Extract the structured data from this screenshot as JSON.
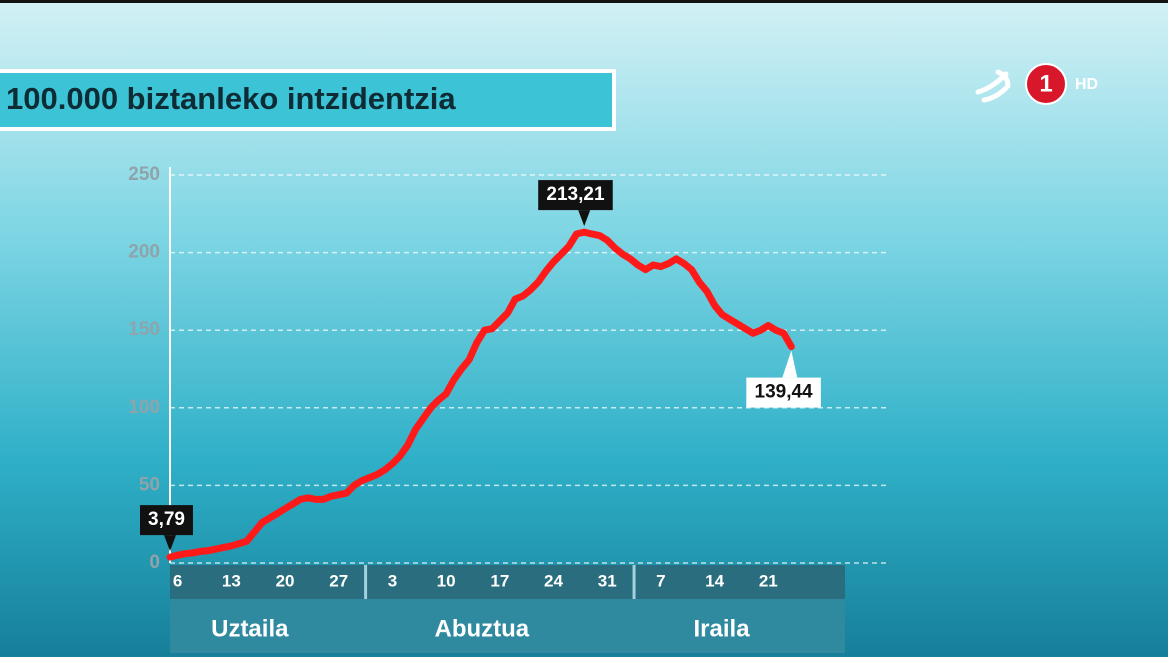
{
  "logo": {
    "number": "1",
    "label": "HD"
  },
  "chart_data": {
    "type": "line",
    "title": "100.000 biztanleko intzidentzia",
    "categories": [
      null,
      "6",
      null,
      null,
      null,
      null,
      null,
      null,
      "13",
      null,
      null,
      null,
      null,
      null,
      null,
      "20",
      null,
      null,
      null,
      null,
      null,
      null,
      "27",
      null,
      null,
      null,
      null,
      null,
      null,
      "3",
      null,
      null,
      null,
      null,
      null,
      null,
      "10",
      null,
      null,
      null,
      null,
      null,
      null,
      "17",
      null,
      null,
      null,
      null,
      null,
      null,
      "24",
      null,
      null,
      null,
      null,
      null,
      null,
      "31",
      null,
      null,
      null,
      null,
      null,
      null,
      "7",
      null,
      null,
      null,
      null,
      null,
      null,
      "14",
      null,
      null,
      null,
      null,
      null,
      null,
      "21",
      null,
      null,
      null,
      null,
      null,
      null,
      null,
      null,
      null
    ],
    "months": [
      "Uztaila",
      "Abuztua",
      "Iraila"
    ],
    "series": [
      {
        "name": "Intzidentzia",
        "color": "#ff1a1a",
        "values": [
          3.79,
          5,
          6,
          6.5,
          7.5,
          8,
          9,
          10,
          11,
          12.5,
          14,
          20,
          26,
          29,
          32,
          35,
          38,
          41,
          42,
          41,
          41,
          43,
          44,
          45,
          50,
          53,
          55,
          57,
          60,
          64,
          69,
          76,
          86,
          93,
          100,
          105,
          109,
          118,
          125,
          131,
          142,
          150,
          151,
          156,
          161,
          170,
          172,
          176,
          181,
          188,
          194,
          199,
          204,
          212,
          213.21,
          212,
          211,
          208,
          203,
          199,
          196,
          192,
          189,
          192,
          191,
          193,
          196,
          193,
          189,
          181,
          175,
          166,
          160,
          157,
          154,
          151,
          148,
          150,
          153,
          150,
          148,
          139.44,
          null,
          null,
          null,
          null,
          null,
          null
        ],
        "value_labels": [
          "3,79",
          null,
          null,
          null,
          null,
          null,
          null,
          null,
          null,
          null,
          null,
          null,
          null,
          null,
          null,
          null,
          null,
          null,
          null,
          null,
          null,
          null,
          null,
          null,
          null,
          null,
          null,
          null,
          null,
          null,
          null,
          null,
          null,
          null,
          null,
          null,
          null,
          null,
          null,
          null,
          null,
          null,
          null,
          null,
          null,
          null,
          null,
          null,
          null,
          null,
          null,
          null,
          null,
          null,
          "213,21",
          null,
          null,
          null,
          null,
          null,
          null,
          null,
          null,
          null,
          null,
          null,
          null,
          null,
          null,
          null,
          null,
          null,
          null,
          null,
          null,
          null,
          null,
          null,
          null,
          null,
          null,
          "139,44",
          null,
          null,
          null,
          null,
          null,
          null
        ]
      }
    ],
    "ylim": [
      0,
      250
    ],
    "yticks": [
      0,
      50,
      100,
      150,
      200,
      250
    ],
    "grid": true
  }
}
